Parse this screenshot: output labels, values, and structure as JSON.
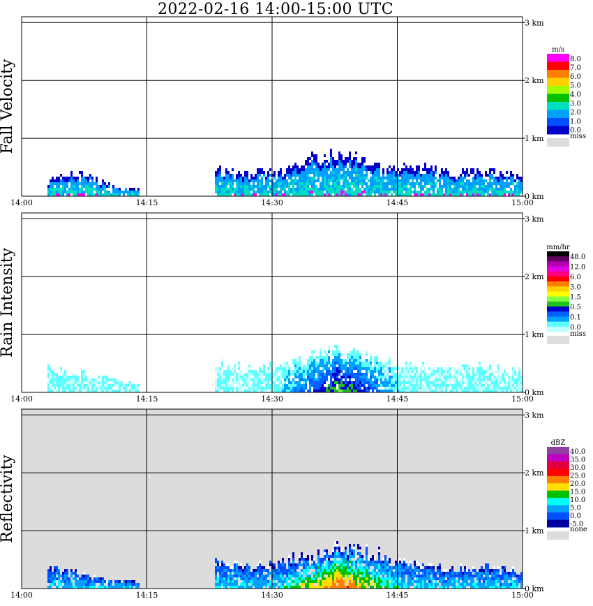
{
  "title": "2022-02-16  14:00-15:00 UTC",
  "chart_data": [
    {
      "type": "heatmap",
      "title": "Fall Velocity",
      "ylabel": "Fall Velocity",
      "xlim": [
        "14:00",
        "15:00"
      ],
      "ylim_km": [
        0,
        3.1
      ],
      "x_ticks": [
        "14:00",
        "14:15",
        "14:30",
        "14:45",
        "15:00"
      ],
      "y_ticks": [
        "0 km",
        "1 km",
        "2 km",
        "3 km"
      ],
      "background": "#ffffff",
      "colorbar": {
        "unit": "m/s",
        "labels": [
          "8.0",
          "7.0",
          "6.0",
          "5.0",
          "4.0",
          "3.0",
          "2.0",
          "1.0",
          "0.0"
        ],
        "colors": [
          "#ff00ff",
          "#ff0000",
          "#ff7f00",
          "#ffd000",
          "#a0ff00",
          "#00c000",
          "#00e0c0",
          "#00a0ff",
          "#0050ff",
          "#0000c8"
        ],
        "missing_label": "miss",
        "missing_color": "#dddddd"
      },
      "echo_top_km": [
        {
          "t": "14:03",
          "h": 0.3
        },
        {
          "t": "14:05",
          "h": 0.45
        },
        {
          "t": "14:08",
          "h": 0.4
        },
        {
          "t": "14:11",
          "h": 0.2
        },
        {
          "t": "14:14",
          "h": 0.15
        },
        {
          "t": "14:23",
          "h": 0.55
        },
        {
          "t": "14:27",
          "h": 0.45
        },
        {
          "t": "14:31",
          "h": 0.5
        },
        {
          "t": "14:35",
          "h": 0.75
        },
        {
          "t": "14:38",
          "h": 0.8
        },
        {
          "t": "14:41",
          "h": 0.75
        },
        {
          "t": "14:44",
          "h": 0.55
        },
        {
          "t": "14:48",
          "h": 0.55
        },
        {
          "t": "14:52",
          "h": 0.45
        },
        {
          "t": "14:56",
          "h": 0.5
        },
        {
          "t": "15:00",
          "h": 0.35
        }
      ]
    },
    {
      "type": "heatmap",
      "title": "Rain Intensity",
      "ylabel": "Rain Intensity",
      "xlim": [
        "14:00",
        "15:00"
      ],
      "ylim_km": [
        0,
        3.1
      ],
      "x_ticks": [
        "14:00",
        "14:15",
        "14:30",
        "14:45",
        "15:00"
      ],
      "y_ticks": [
        "0 km",
        "1 km",
        "2 km",
        "3 km"
      ],
      "background": "#ffffff",
      "colorbar": {
        "unit": "mm/hr",
        "labels": [
          "48.0",
          "12.0",
          "6.0",
          "3.0",
          "1.5",
          "0.5",
          "0.1",
          "0.0"
        ],
        "colors": [
          "#000000",
          "#600060",
          "#b000b0",
          "#e000e0",
          "#ff0080",
          "#ff0000",
          "#ff8000",
          "#ffd000",
          "#ffff00",
          "#80ff40",
          "#20c020",
          "#0000c8",
          "#0060ff",
          "#00a0ff",
          "#60ffff",
          "#c0ffff"
        ],
        "missing_label": "miss",
        "missing_color": "#dddddd"
      },
      "echo_top_km": [
        {
          "t": "14:03",
          "h": 0.45
        },
        {
          "t": "14:06",
          "h": 0.4
        },
        {
          "t": "14:10",
          "h": 0.3
        },
        {
          "t": "14:14",
          "h": 0.15
        },
        {
          "t": "14:23",
          "h": 0.55
        },
        {
          "t": "14:28",
          "h": 0.45
        },
        {
          "t": "14:33",
          "h": 0.6
        },
        {
          "t": "14:37",
          "h": 0.8
        },
        {
          "t": "14:41",
          "h": 0.7
        },
        {
          "t": "14:45",
          "h": 0.55
        },
        {
          "t": "14:50",
          "h": 0.45
        },
        {
          "t": "14:55",
          "h": 0.5
        },
        {
          "t": "15:00",
          "h": 0.4
        }
      ]
    },
    {
      "type": "heatmap",
      "title": "Reflectivity",
      "ylabel": "Reflectivity",
      "xlim": [
        "14:00",
        "15:00"
      ],
      "ylim_km": [
        0,
        3.1
      ],
      "x_ticks": [
        "14:00",
        "14:15",
        "14:30",
        "14:45",
        "15:00"
      ],
      "y_ticks": [
        "0 km",
        "1 km",
        "2 km",
        "3 km"
      ],
      "background": "#dcdcdc",
      "colorbar": {
        "unit": "dBZ",
        "labels": [
          "40.0",
          "35.0",
          "30.0",
          "25.0",
          "20.0",
          "15.0",
          "10.0",
          "5.0",
          "0.0",
          "-5.0"
        ],
        "colors": [
          "#9040a0",
          "#c000c0",
          "#e00040",
          "#ff0000",
          "#ff8000",
          "#ffe000",
          "#00c000",
          "#00ffff",
          "#00a0ff",
          "#0050ff",
          "#0000a0"
        ],
        "missing_label": "none",
        "missing_color": "#dddddd"
      },
      "echo_top_km": [
        {
          "t": "14:03",
          "h": 0.45
        },
        {
          "t": "14:06",
          "h": 0.35
        },
        {
          "t": "14:10",
          "h": 0.2
        },
        {
          "t": "14:14",
          "h": 0.15
        },
        {
          "t": "14:23",
          "h": 0.55
        },
        {
          "t": "14:28",
          "h": 0.45
        },
        {
          "t": "14:33",
          "h": 0.6
        },
        {
          "t": "14:38",
          "h": 0.8
        },
        {
          "t": "14:42",
          "h": 0.7
        },
        {
          "t": "14:46",
          "h": 0.5
        },
        {
          "t": "14:51",
          "h": 0.4
        },
        {
          "t": "14:55",
          "h": 0.45
        },
        {
          "t": "15:00",
          "h": 0.35
        }
      ]
    }
  ]
}
